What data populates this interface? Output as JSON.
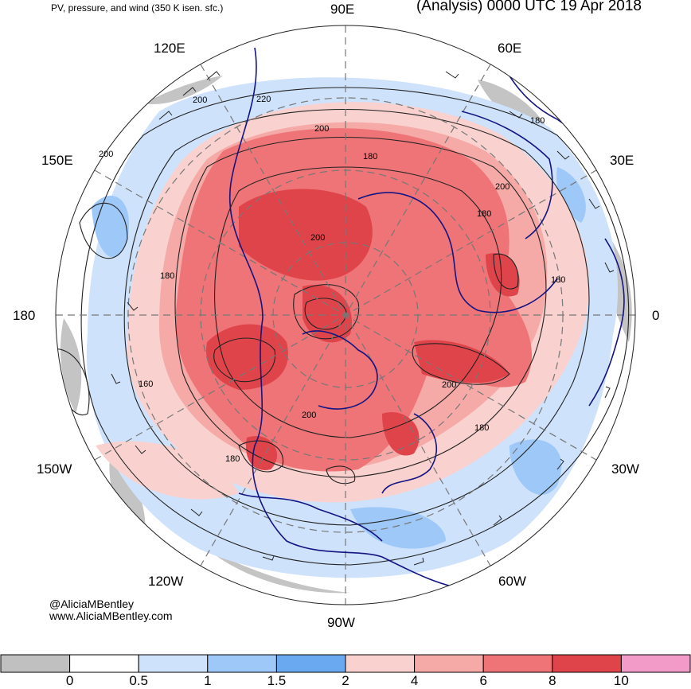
{
  "header": {
    "left_title": "PV, pressure, and wind (350 K isen. sfc.)",
    "right_title": "(Analysis) 0000 UTC 19 Apr 2018"
  },
  "longitude_labels": {
    "n90E": "90E",
    "n60E": "60E",
    "n120E": "120E",
    "n30E": "30E",
    "n150E": "150E",
    "n180": "180",
    "n0": "0",
    "n150W": "150W",
    "n30W": "30W",
    "n120W": "120W",
    "n60W": "60W",
    "n90W": "90W"
  },
  "contour_labels": [
    "220",
    "200",
    "200",
    "200",
    "200",
    "180",
    "180",
    "180",
    "180",
    "180",
    "200",
    "200",
    "200",
    "160",
    "180",
    "180"
  ],
  "credits": {
    "handle": "@AliciaMBentley",
    "website": "www.AliciaMBentley.com"
  },
  "colorbar": {
    "ticks": [
      "0",
      "0.5",
      "1",
      "1.5",
      "2",
      "4",
      "6",
      "8",
      "10"
    ],
    "colors": [
      "#c0c0c0",
      "#ffffff",
      "#cfe2fb",
      "#9ec8f7",
      "#6aa9f0",
      "#f9d2cf",
      "#f5aaa8",
      "#ee7477",
      "#e0444b",
      "#f29ac8"
    ]
  },
  "colors": {
    "coastline": "#141482",
    "contour": "#222222",
    "grid": "#777777"
  }
}
